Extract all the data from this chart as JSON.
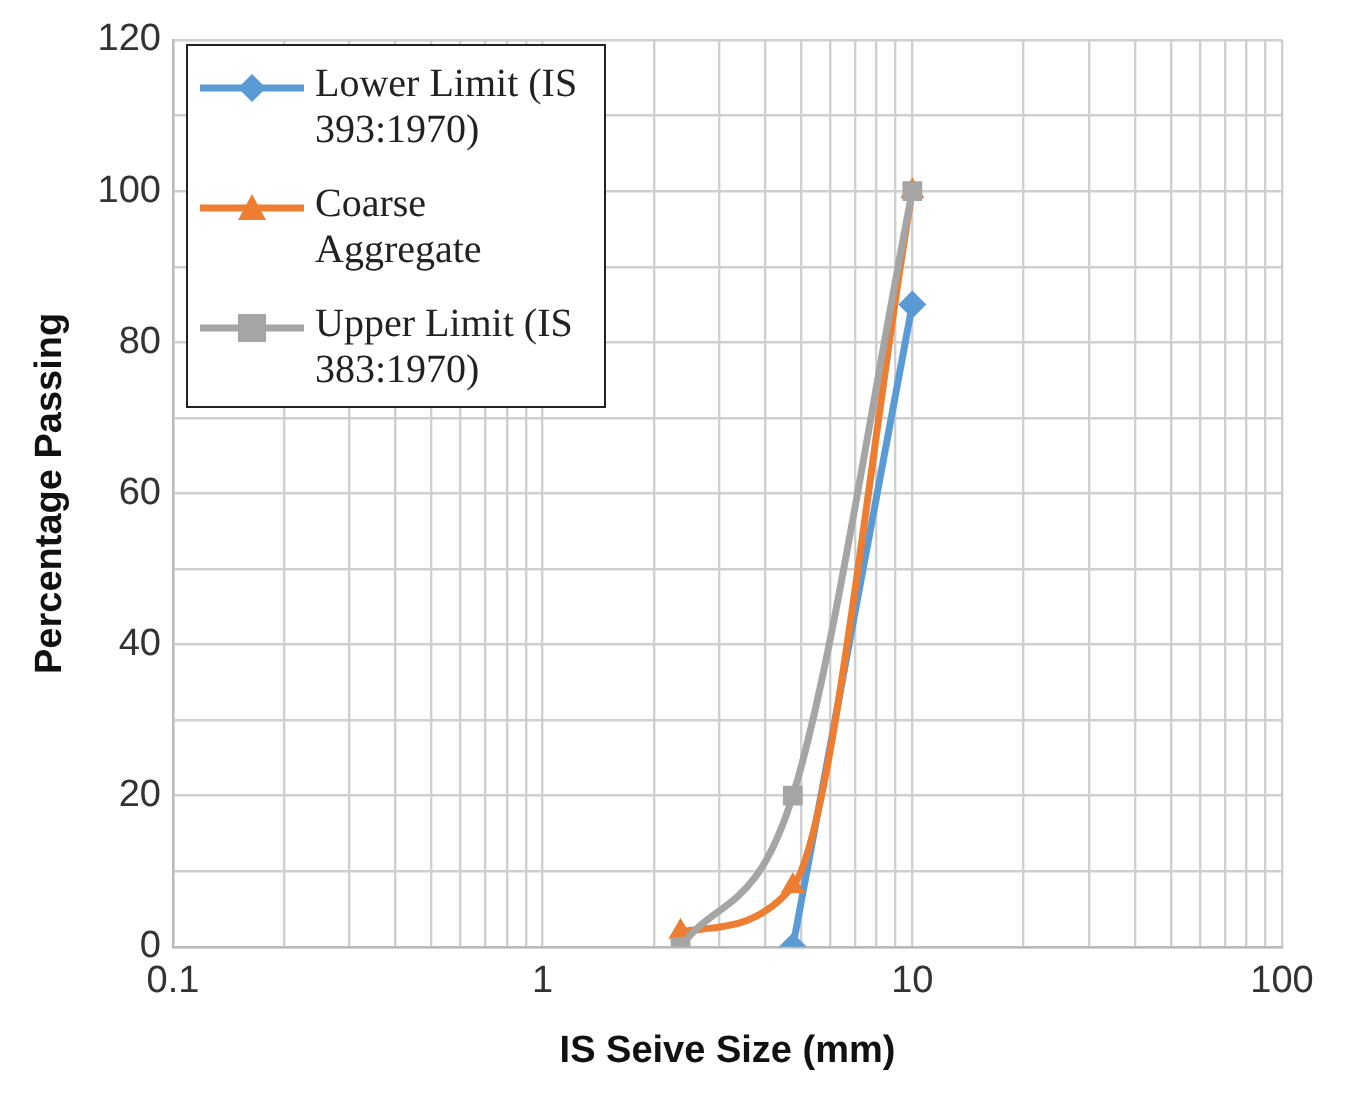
{
  "chart_data": {
    "type": "line",
    "xlabel": "IS Seive Size (mm)",
    "ylabel": "Percentage Passing",
    "log": "x",
    "xlim": [
      0.1,
      100
    ],
    "xticks": [
      0.1,
      {
        "value": 0.2,
        "label": null
      },
      {
        "value": 0.3,
        "label": null
      },
      {
        "value": 0.4,
        "label": null
      },
      {
        "value": 0.5,
        "label": null
      },
      {
        "value": 0.6,
        "label": null
      },
      {
        "value": 0.7,
        "label": null
      },
      {
        "value": 0.8,
        "label": null
      },
      {
        "value": 0.9,
        "label": null
      },
      1,
      {
        "value": 2,
        "label": null
      },
      {
        "value": 3,
        "label": null
      },
      {
        "value": 4,
        "label": null
      },
      {
        "value": 5,
        "label": null
      },
      {
        "value": 6,
        "label": null
      },
      {
        "value": 7,
        "label": null
      },
      {
        "value": 8,
        "label": null
      },
      {
        "value": 9,
        "label": null
      },
      10,
      {
        "value": 20,
        "label": null
      },
      {
        "value": 30,
        "label": null
      },
      {
        "value": 40,
        "label": null
      },
      {
        "value": 50,
        "label": null
      },
      {
        "value": 60,
        "label": null
      },
      {
        "value": 70,
        "label": null
      },
      {
        "value": 80,
        "label": null
      },
      {
        "value": 90,
        "label": null
      },
      100
    ],
    "ylim": [
      0,
      120
    ],
    "yticks": [
      0,
      {
        "value": 10,
        "label": null
      },
      20,
      {
        "value": 30,
        "label": null
      },
      40,
      {
        "value": 50,
        "label": null
      },
      60,
      {
        "value": 70,
        "label": null
      },
      80,
      {
        "value": 90,
        "label": null
      },
      100,
      {
        "value": 110,
        "label": null
      },
      120
    ],
    "grid": true,
    "legend": "top left",
    "line_style": "solid",
    "series": [
      {
        "name": "Lower Limit (IS 393:1970)",
        "color": "#5b9bd5",
        "marker": "diamond",
        "x": [
          4.75,
          10
        ],
        "values": [
          0,
          85
        ]
      },
      {
        "name": "Coarse Aggregate",
        "color": "#ed7d31",
        "marker": "triangle",
        "x": [
          2.36,
          4.75,
          10
        ],
        "values": [
          2,
          8,
          100
        ]
      },
      {
        "name": "Upper Limit (IS 383:1970)",
        "color": "#a5a5a5",
        "marker": "square",
        "x": [
          2.36,
          4.75,
          10
        ],
        "values": [
          0,
          20,
          100
        ]
      }
    ]
  }
}
